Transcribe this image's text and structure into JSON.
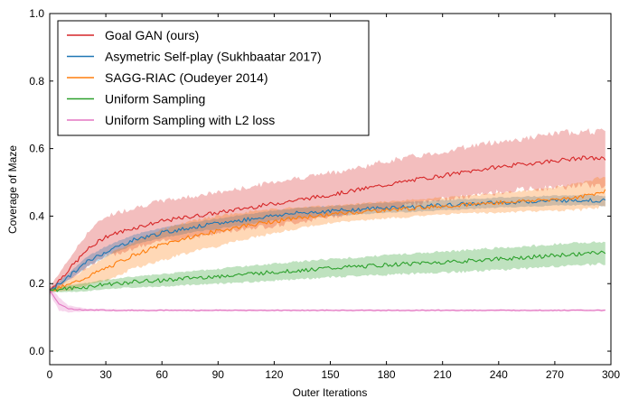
{
  "chart_data": {
    "type": "line",
    "title": "",
    "xlabel": "Outer Iterations",
    "ylabel": "Coverage of Maze",
    "xlim": [
      0,
      300
    ],
    "ylim": [
      -0.04,
      1.0
    ],
    "xticks": [
      0,
      30,
      60,
      90,
      120,
      150,
      180,
      210,
      240,
      270,
      300
    ],
    "yticks": [
      0.0,
      0.2,
      0.4,
      0.6,
      0.8,
      1.0
    ],
    "xtick_labels": [
      "0",
      "30",
      "60",
      "90",
      "120",
      "150",
      "180",
      "210",
      "240",
      "270",
      "300"
    ],
    "ytick_labels": [
      "0.0",
      "0.2",
      "0.4",
      "0.6",
      "0.8",
      "1.0"
    ],
    "grid": false,
    "legend_position": "top-left",
    "shaded_band": "variability around each mean curve",
    "series": [
      {
        "name": "Goal GAN (ours)",
        "color": "#d62728",
        "x": [
          0,
          10,
          20,
          30,
          45,
          60,
          75,
          90,
          105,
          120,
          135,
          150,
          165,
          180,
          195,
          210,
          225,
          240,
          255,
          270,
          285,
          297
        ],
        "y": [
          0.18,
          0.24,
          0.3,
          0.34,
          0.365,
          0.385,
          0.398,
          0.41,
          0.424,
          0.437,
          0.45,
          0.463,
          0.478,
          0.493,
          0.507,
          0.52,
          0.533,
          0.546,
          0.555,
          0.564,
          0.572,
          0.57
        ],
        "band": [
          0.01,
          0.03,
          0.05,
          0.06,
          0.06,
          0.06,
          0.06,
          0.06,
          0.06,
          0.065,
          0.065,
          0.065,
          0.065,
          0.07,
          0.07,
          0.07,
          0.075,
          0.075,
          0.075,
          0.08,
          0.08,
          0.08
        ]
      },
      {
        "name": "Asymetric Self-play (Sukhbaatar 2017)",
        "color": "#1f77b4",
        "x": [
          0,
          10,
          20,
          30,
          45,
          60,
          75,
          90,
          105,
          120,
          135,
          150,
          165,
          180,
          195,
          210,
          225,
          240,
          255,
          270,
          285,
          297
        ],
        "y": [
          0.18,
          0.22,
          0.265,
          0.295,
          0.33,
          0.35,
          0.366,
          0.378,
          0.39,
          0.402,
          0.41,
          0.415,
          0.42,
          0.425,
          0.428,
          0.432,
          0.436,
          0.44,
          0.443,
          0.446,
          0.448,
          0.445
        ],
        "band": [
          0.005,
          0.01,
          0.015,
          0.015,
          0.015,
          0.015,
          0.015,
          0.015,
          0.015,
          0.015,
          0.015,
          0.015,
          0.015,
          0.015,
          0.015,
          0.015,
          0.015,
          0.015,
          0.015,
          0.015,
          0.015,
          0.015
        ]
      },
      {
        "name": "SAGG-RIAC (Oudeyer 2014)",
        "color": "#ff7f0e",
        "x": [
          0,
          10,
          20,
          30,
          45,
          60,
          75,
          90,
          105,
          120,
          135,
          150,
          165,
          180,
          195,
          210,
          225,
          240,
          255,
          270,
          285,
          297
        ],
        "y": [
          0.18,
          0.195,
          0.22,
          0.245,
          0.285,
          0.315,
          0.338,
          0.356,
          0.372,
          0.385,
          0.396,
          0.405,
          0.412,
          0.418,
          0.424,
          0.43,
          0.435,
          0.44,
          0.445,
          0.45,
          0.458,
          0.475
        ],
        "band": [
          0.005,
          0.015,
          0.025,
          0.035,
          0.04,
          0.045,
          0.045,
          0.045,
          0.04,
          0.035,
          0.03,
          0.025,
          0.025,
          0.025,
          0.025,
          0.025,
          0.025,
          0.03,
          0.03,
          0.035,
          0.04,
          0.045
        ]
      },
      {
        "name": "Uniform Sampling",
        "color": "#2ca02c",
        "x": [
          0,
          10,
          20,
          30,
          45,
          60,
          75,
          90,
          105,
          120,
          135,
          150,
          165,
          180,
          195,
          210,
          225,
          240,
          255,
          270,
          285,
          297
        ],
        "y": [
          0.18,
          0.185,
          0.19,
          0.198,
          0.205,
          0.21,
          0.216,
          0.222,
          0.228,
          0.234,
          0.24,
          0.246,
          0.25,
          0.255,
          0.26,
          0.264,
          0.268,
          0.273,
          0.278,
          0.283,
          0.288,
          0.292
        ],
        "band": [
          0.005,
          0.01,
          0.012,
          0.014,
          0.016,
          0.018,
          0.02,
          0.022,
          0.024,
          0.025,
          0.026,
          0.027,
          0.028,
          0.029,
          0.03,
          0.031,
          0.032,
          0.033,
          0.033,
          0.033,
          0.033,
          0.033
        ]
      },
      {
        "name": "Uniform Sampling with L2 loss",
        "color": "#e377c2",
        "x": [
          0,
          5,
          10,
          20,
          40,
          60,
          90,
          120,
          150,
          180,
          210,
          240,
          270,
          297
        ],
        "y": [
          0.18,
          0.14,
          0.125,
          0.122,
          0.121,
          0.121,
          0.121,
          0.121,
          0.121,
          0.121,
          0.121,
          0.121,
          0.121,
          0.121
        ],
        "band": [
          0.01,
          0.02,
          0.01,
          0.004,
          0.003,
          0.003,
          0.003,
          0.003,
          0.003,
          0.003,
          0.003,
          0.003,
          0.003,
          0.003
        ]
      }
    ]
  }
}
